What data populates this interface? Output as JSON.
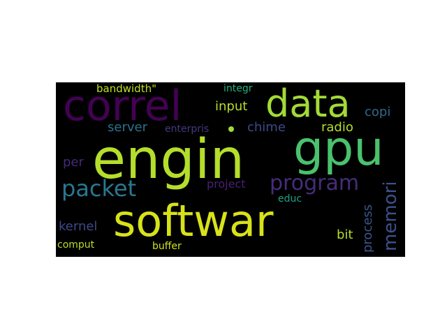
{
  "cloud": {
    "background": "#000000",
    "words": [
      {
        "text": "softwar",
        "color": "#d8e219"
      },
      {
        "text": "engin",
        "color": "#b5de2b"
      },
      {
        "text": "gpu",
        "color": "#4ac16d"
      },
      {
        "text": "correl",
        "color": "#440154"
      },
      {
        "text": "data",
        "color": "#a2da37"
      },
      {
        "text": "packet",
        "color": "#2a788e"
      },
      {
        "text": "program",
        "color": "#472c7a"
      },
      {
        "text": "memori",
        "color": "#3b528b"
      },
      {
        "text": "process",
        "color": "#39568c"
      },
      {
        "text": "input",
        "color": "#b8de29"
      },
      {
        "text": "server",
        "color": "#2c728e"
      },
      {
        "text": "chime",
        "color": "#3e4a89"
      },
      {
        "text": "radio",
        "color": "#b5de2b"
      },
      {
        "text": "copi",
        "color": "#31688e"
      },
      {
        "text": "bandwidth\"",
        "color": "#c2df23"
      },
      {
        "text": "integr",
        "color": "#29af7f"
      },
      {
        "text": "enterpris",
        "color": "#443983"
      },
      {
        "text": "per",
        "color": "#482878"
      },
      {
        "text": "project",
        "color": "#482173"
      },
      {
        "text": "educ",
        "color": "#1fa088"
      },
      {
        "text": "kernel",
        "color": "#3e4989"
      },
      {
        "text": "bit",
        "color": "#b5de2b"
      },
      {
        "text": "comput",
        "color": "#bddf26"
      },
      {
        "text": "buffer",
        "color": "#d2e21b"
      }
    ],
    "dot_color": "#a0da39"
  }
}
